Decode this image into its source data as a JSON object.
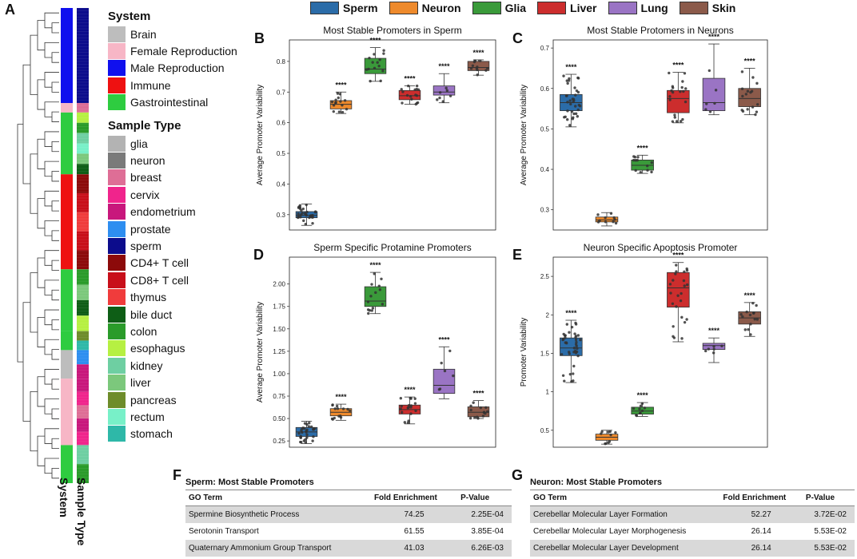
{
  "panels": {
    "A": "A",
    "B": "B",
    "C": "C",
    "D": "D",
    "E": "E",
    "F": "F",
    "G": "G"
  },
  "top_legend": [
    {
      "label": "Sperm",
      "color": "#2b6ca8"
    },
    {
      "label": "Neuron",
      "color": "#ee8a2c"
    },
    {
      "label": "Glia",
      "color": "#3a9a3a"
    },
    {
      "label": "Liver",
      "color": "#cc2d2d"
    },
    {
      "label": "Lung",
      "color": "#9a74c4"
    },
    {
      "label": "Skin",
      "color": "#8b5a4a"
    }
  ],
  "system_legend": {
    "title": "System",
    "items": [
      {
        "label": "Brain",
        "color": "#bdbdbd"
      },
      {
        "label": "Female Reproduction",
        "color": "#f7b6c6"
      },
      {
        "label": "Male Reproduction",
        "color": "#1010ee"
      },
      {
        "label": "Immune",
        "color": "#ee1111"
      },
      {
        "label": "Gastrointestinal",
        "color": "#2ecc40"
      }
    ]
  },
  "sample_legend": {
    "title": "Sample Type",
    "items": [
      {
        "label": "glia",
        "color": "#b3b3b3"
      },
      {
        "label": "neuron",
        "color": "#7a7a7a"
      },
      {
        "label": "breast",
        "color": "#de6e96"
      },
      {
        "label": "cervix",
        "color": "#f0248c"
      },
      {
        "label": "endometrium",
        "color": "#c8177c"
      },
      {
        "label": "prostate",
        "color": "#2e8ef0"
      },
      {
        "label": "sperm",
        "color": "#0c0c8c"
      },
      {
        "label": "CD4+ T cell",
        "color": "#8c0a0a"
      },
      {
        "label": "CD8+ T cell",
        "color": "#c80f1a"
      },
      {
        "label": "thymus",
        "color": "#f03c3c"
      },
      {
        "label": "bile duct",
        "color": "#0e5e16"
      },
      {
        "label": "colon",
        "color": "#2a9b2a"
      },
      {
        "label": "esophagus",
        "color": "#b6f042"
      },
      {
        "label": "kidney",
        "color": "#6ecfa2"
      },
      {
        "label": "liver",
        "color": "#7cc87c"
      },
      {
        "label": "pancreas",
        "color": "#6e8c2a"
      },
      {
        "label": "rectum",
        "color": "#78f0c8"
      },
      {
        "label": "stomach",
        "color": "#2eb8a8"
      }
    ]
  },
  "heatmap_labels": {
    "system": "System",
    "sample": "Sample Type"
  },
  "chart_data": [
    {
      "id": "B",
      "type": "box",
      "title": "Most Stable Promoters in Sperm",
      "xlabel": "",
      "ylabel": "Average Promoter Variability",
      "ylim": [
        0.25,
        0.87
      ],
      "yticks": [
        0.3,
        0.4,
        0.5,
        0.6,
        0.7,
        0.8
      ],
      "categories": [
        "Sperm",
        "Neuron",
        "Glia",
        "Liver",
        "Lung",
        "Skin"
      ],
      "boxes": [
        {
          "min": 0.265,
          "q1": 0.29,
          "median": 0.298,
          "q3": 0.31,
          "max": 0.335,
          "n": 30,
          "sig": ""
        },
        {
          "min": 0.63,
          "q1": 0.645,
          "median": 0.66,
          "q3": 0.672,
          "max": 0.7,
          "n": 15,
          "sig": "****"
        },
        {
          "min": 0.735,
          "q1": 0.76,
          "median": 0.775,
          "q3": 0.81,
          "max": 0.845,
          "n": 14,
          "sig": "****"
        },
        {
          "min": 0.66,
          "q1": 0.675,
          "median": 0.688,
          "q3": 0.705,
          "max": 0.72,
          "n": 16,
          "sig": "****"
        },
        {
          "min": 0.665,
          "q1": 0.69,
          "median": 0.7,
          "q3": 0.72,
          "max": 0.76,
          "n": 7,
          "sig": "****"
        },
        {
          "min": 0.755,
          "q1": 0.77,
          "median": 0.78,
          "q3": 0.8,
          "max": 0.805,
          "n": 12,
          "sig": "****"
        }
      ]
    },
    {
      "id": "C",
      "type": "box",
      "title": "Most Stable Protomers in Neurons",
      "xlabel": "",
      "ylabel": "Average Promoter Variability",
      "ylim": [
        0.25,
        0.72
      ],
      "yticks": [
        0.3,
        0.4,
        0.5,
        0.6,
        0.7
      ],
      "categories": [
        "Sperm",
        "Neuron",
        "Glia",
        "Liver",
        "Lung",
        "Skin"
      ],
      "boxes": [
        {
          "min": 0.505,
          "q1": 0.545,
          "median": 0.565,
          "q3": 0.585,
          "max": 0.635,
          "n": 35,
          "sig": "****"
        },
        {
          "min": 0.26,
          "q1": 0.27,
          "median": 0.275,
          "q3": 0.282,
          "max": 0.293,
          "n": 10,
          "sig": ""
        },
        {
          "min": 0.39,
          "q1": 0.398,
          "median": 0.41,
          "q3": 0.423,
          "max": 0.435,
          "n": 12,
          "sig": "****"
        },
        {
          "min": 0.515,
          "q1": 0.54,
          "median": 0.575,
          "q3": 0.595,
          "max": 0.64,
          "n": 20,
          "sig": "****"
        },
        {
          "min": 0.535,
          "q1": 0.545,
          "median": 0.565,
          "q3": 0.625,
          "max": 0.71,
          "n": 6,
          "sig": "****"
        },
        {
          "min": 0.535,
          "q1": 0.555,
          "median": 0.575,
          "q3": 0.6,
          "max": 0.65,
          "n": 16,
          "sig": "****"
        }
      ]
    },
    {
      "id": "D",
      "type": "box",
      "title": "Sperm Specific Protamine Promoters",
      "xlabel": "",
      "ylabel": "Average Promoter Variability",
      "ylim": [
        0.18,
        2.3
      ],
      "yticks": [
        0.25,
        0.5,
        0.75,
        1.0,
        1.25,
        1.5,
        1.75,
        2.0
      ],
      "ytick_labels": [
        "0.25",
        "0.50",
        "0.75",
        "1.00",
        "1.25",
        "1.50",
        "1.75",
        "2.00"
      ],
      "categories": [
        "Sperm",
        "Neuron",
        "Glia",
        "Liver",
        "Lung",
        "Skin"
      ],
      "boxes": [
        {
          "min": 0.22,
          "q1": 0.3,
          "median": 0.35,
          "q3": 0.4,
          "max": 0.47,
          "n": 30,
          "sig": ""
        },
        {
          "min": 0.48,
          "q1": 0.53,
          "median": 0.57,
          "q3": 0.61,
          "max": 0.66,
          "n": 14,
          "sig": "****"
        },
        {
          "min": 1.67,
          "q1": 1.75,
          "median": 1.81,
          "q3": 1.97,
          "max": 2.13,
          "n": 14,
          "sig": "****"
        },
        {
          "min": 0.44,
          "q1": 0.55,
          "median": 0.6,
          "q3": 0.65,
          "max": 0.74,
          "n": 18,
          "sig": "****"
        },
        {
          "min": 0.72,
          "q1": 0.78,
          "median": 0.87,
          "q3": 1.05,
          "max": 1.3,
          "n": 6,
          "sig": "****"
        },
        {
          "min": 0.5,
          "q1": 0.52,
          "median": 0.57,
          "q3": 0.63,
          "max": 0.7,
          "n": 14,
          "sig": "****"
        }
      ]
    },
    {
      "id": "E",
      "type": "box",
      "title": "Neuron Specific Apoptosis Promoter",
      "xlabel": "",
      "ylabel": "Promoter Variability",
      "ylim": [
        0.28,
        2.75
      ],
      "yticks": [
        0.5,
        1.0,
        1.5,
        2.0,
        2.5
      ],
      "categories": [
        "Sperm",
        "Neuron",
        "Glia",
        "Liver",
        "Lung",
        "Skin"
      ],
      "boxes": [
        {
          "min": 1.12,
          "q1": 1.47,
          "median": 1.57,
          "q3": 1.7,
          "max": 1.93,
          "n": 40,
          "sig": "****"
        },
        {
          "min": 0.32,
          "q1": 0.37,
          "median": 0.41,
          "q3": 0.45,
          "max": 0.5,
          "n": 10,
          "sig": ""
        },
        {
          "min": 0.68,
          "q1": 0.71,
          "median": 0.75,
          "q3": 0.8,
          "max": 0.86,
          "n": 10,
          "sig": "****"
        },
        {
          "min": 1.65,
          "q1": 2.1,
          "median": 2.35,
          "q3": 2.55,
          "max": 2.68,
          "n": 24,
          "sig": "****"
        },
        {
          "min": 1.38,
          "q1": 1.55,
          "median": 1.6,
          "q3": 1.63,
          "max": 1.7,
          "n": 6,
          "sig": "****"
        },
        {
          "min": 1.72,
          "q1": 1.88,
          "median": 1.96,
          "q3": 2.04,
          "max": 2.16,
          "n": 14,
          "sig": "****"
        }
      ]
    }
  ],
  "table_F": {
    "title": "Sperm: Most Stable Promoters",
    "headers": [
      "GO Term",
      "Fold Enrichment",
      "P-Value"
    ],
    "rows": [
      [
        "Spermine Biosynthetic Process",
        "74.25",
        "2.25E-04"
      ],
      [
        "Serotonin Transport",
        "61.55",
        "3.85E-04"
      ],
      [
        "Quaternary Ammonium Group Transport",
        "41.03",
        "6.26E-03"
      ]
    ]
  },
  "table_G": {
    "title": "Neuron: Most Stable Promoters",
    "headers": [
      "GO Term",
      "Fold Enrichment",
      "P-Value"
    ],
    "rows": [
      [
        "Cerebellar Molecular Layer Formation",
        "52.27",
        "3.72E-02"
      ],
      [
        "Cerebellar Molecular Layer Morphogenesis",
        "26.14",
        "5.53E-02"
      ],
      [
        "Cerebellar Molecular Layer Development",
        "26.14",
        "5.53E-02"
      ]
    ]
  }
}
